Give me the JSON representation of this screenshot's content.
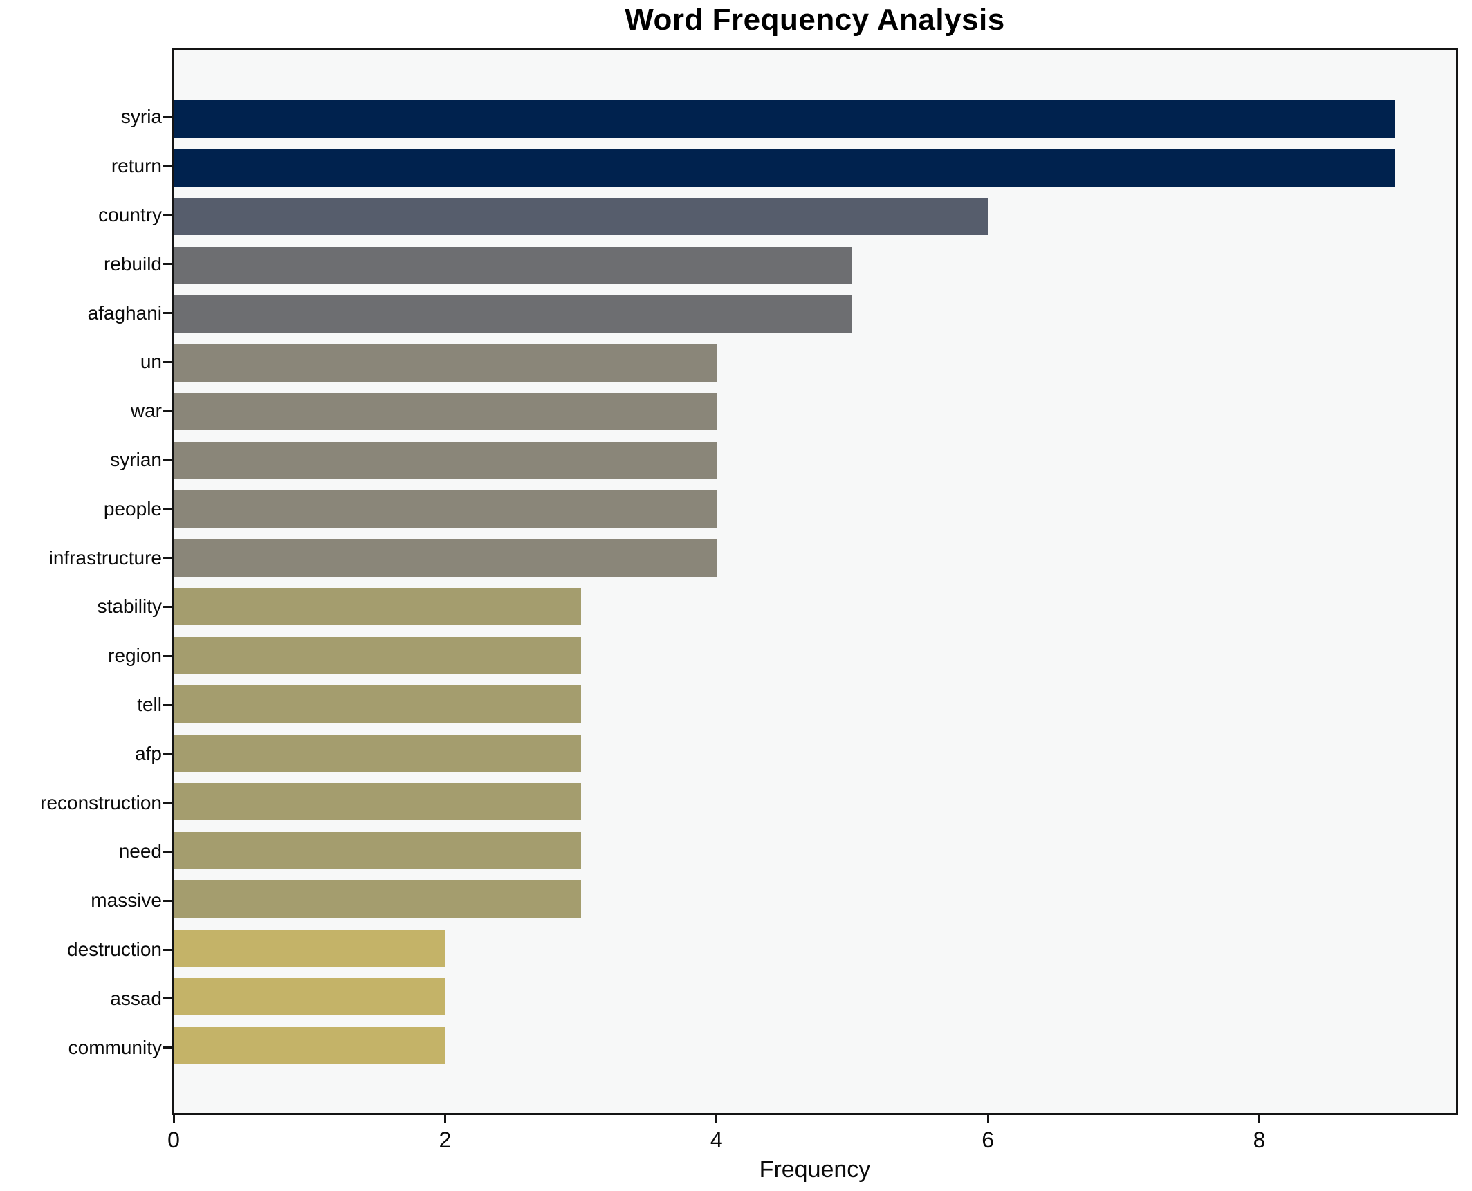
{
  "title": "Word Frequency Analysis",
  "chart_data": {
    "type": "bar",
    "orientation": "horizontal",
    "title": "Word Frequency Analysis",
    "xlabel": "Frequency",
    "ylabel": "",
    "categories": [
      "syria",
      "return",
      "country",
      "rebuild",
      "afaghani",
      "un",
      "war",
      "syrian",
      "people",
      "infrastructure",
      "stability",
      "region",
      "tell",
      "afp",
      "reconstruction",
      "need",
      "massive",
      "destruction",
      "assad",
      "community"
    ],
    "values": [
      9,
      9,
      6,
      5,
      5,
      4,
      4,
      4,
      4,
      4,
      3,
      3,
      3,
      3,
      3,
      3,
      3,
      2,
      2,
      2
    ],
    "bar_colors": [
      "#00224e",
      "#00224e",
      "#565d6c",
      "#6d6e71",
      "#6d6e71",
      "#8a8679",
      "#8a8679",
      "#8a8679",
      "#8a8679",
      "#8a8679",
      "#a49d6e",
      "#a49d6e",
      "#a49d6e",
      "#a49d6e",
      "#a49d6e",
      "#a49d6e",
      "#a49d6e",
      "#c4b368",
      "#c4b368",
      "#c4b368"
    ],
    "xlim": [
      0,
      9.45
    ],
    "x_ticks": [
      "0",
      "2",
      "4",
      "6",
      "8"
    ],
    "x_tick_values": [
      0,
      2,
      4,
      6,
      8
    ],
    "grid": false,
    "legend": null,
    "plot_background": "#f7f8f8",
    "figure_background": "#ffffff",
    "spine_color": "#141414",
    "text_color": "#0a0a0a"
  }
}
